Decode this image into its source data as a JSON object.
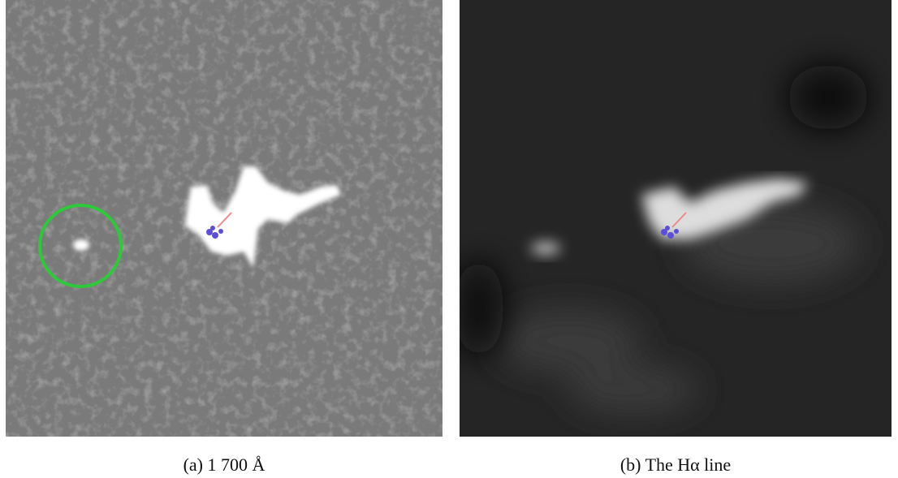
{
  "figure": {
    "panels": [
      {
        "caption": "(a) 1 700 Å"
      },
      {
        "caption": "(b) The Hα line"
      }
    ]
  }
}
